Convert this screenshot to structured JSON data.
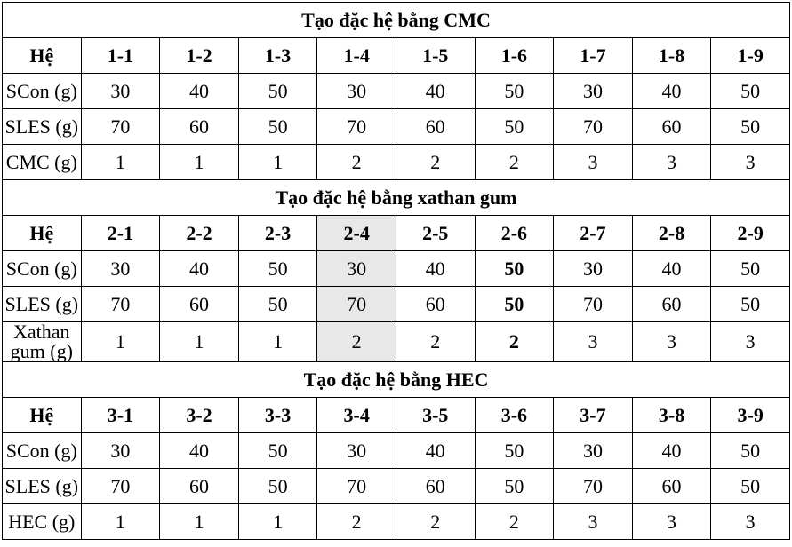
{
  "columns_count": 9,
  "sections": [
    {
      "title": "Tạo đặc hệ bằng CMC",
      "header": {
        "label": "Hệ",
        "cols": [
          "1-1",
          "1-2",
          "1-3",
          "1-4",
          "1-5",
          "1-6",
          "1-7",
          "1-8",
          "1-9"
        ]
      },
      "rows": [
        {
          "label": "SCon (g)",
          "values": [
            "30",
            "40",
            "50",
            "30",
            "40",
            "50",
            "30",
            "40",
            "50"
          ]
        },
        {
          "label": "SLES (g)",
          "values": [
            "70",
            "60",
            "50",
            "70",
            "60",
            "50",
            "70",
            "60",
            "50"
          ]
        },
        {
          "label": "CMC (g)",
          "values": [
            "1",
            "1",
            "1",
            "2",
            "2",
            "2",
            "3",
            "3",
            "3"
          ]
        }
      ]
    },
    {
      "title": "Tạo đặc hệ bằng xathan gum",
      "header": {
        "label": "Hệ",
        "cols": [
          "2-1",
          "2-2",
          "2-3",
          "2-4",
          "2-5",
          "2-6",
          "2-7",
          "2-8",
          "2-9"
        ]
      },
      "highlighted_column": "2-4",
      "highlight_color": "#e8e8e8",
      "bold_column": "2-6",
      "rows": [
        {
          "label": "SCon (g)",
          "values": [
            "30",
            "40",
            "50",
            "30",
            "40",
            "50",
            "30",
            "40",
            "50"
          ]
        },
        {
          "label": "SLES (g)",
          "values": [
            "70",
            "60",
            "50",
            "70",
            "60",
            "50",
            "70",
            "60",
            "50"
          ]
        },
        {
          "label": "Xathan gum (g)",
          "values": [
            "1",
            "1",
            "1",
            "2",
            "2",
            "2",
            "3",
            "3",
            "3"
          ]
        }
      ]
    },
    {
      "title": "Tạo đặc hệ bằng HEC",
      "header": {
        "label": "Hệ",
        "cols": [
          "3-1",
          "3-2",
          "3-3",
          "3-4",
          "3-5",
          "3-6",
          "3-7",
          "3-8",
          "3-9"
        ]
      },
      "rows": [
        {
          "label": "SCon (g)",
          "values": [
            "30",
            "40",
            "50",
            "30",
            "40",
            "50",
            "30",
            "40",
            "50"
          ]
        },
        {
          "label": "SLES (g)",
          "values": [
            "70",
            "60",
            "50",
            "70",
            "60",
            "50",
            "70",
            "60",
            "50"
          ]
        },
        {
          "label": "HEC (g)",
          "values": [
            "1",
            "1",
            "1",
            "2",
            "2",
            "2",
            "3",
            "3",
            "3"
          ]
        }
      ]
    }
  ]
}
